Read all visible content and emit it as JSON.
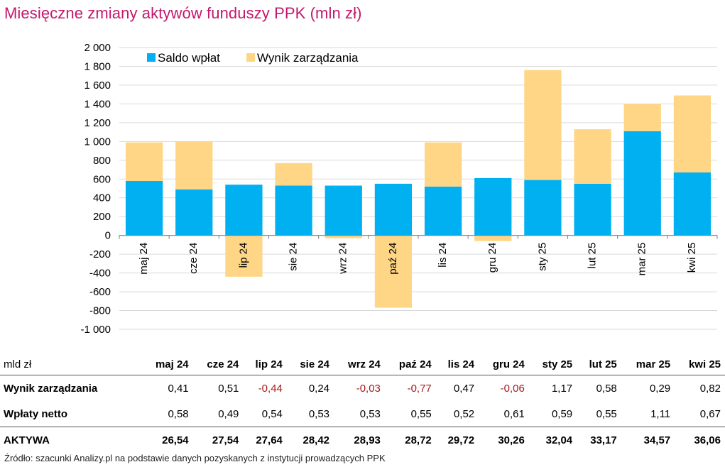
{
  "title": "Miesięczne zmiany aktywów funduszy PPK (mln zł)",
  "source": "Źródło: szacunki Analizy.pl na podstawie danych pozyskanych z instytucji prowadzących PPK",
  "colors": {
    "title": "#c4186c",
    "saldo": "#00b0f0",
    "wynik": "#ffd685",
    "negative_text": "#a8191c",
    "grid": "#d9d9d9"
  },
  "chart_data": {
    "type": "bar",
    "stacked": true,
    "categories": [
      "maj 24",
      "cze 24",
      "lip 24",
      "sie 24",
      "wrz 24",
      "paź 24",
      "lis 24",
      "gru 24",
      "sty 25",
      "lut 25",
      "mar 25",
      "kwi 25"
    ],
    "series": [
      {
        "name": "Saldo wpłat",
        "color": "#00b0f0",
        "values": [
          580,
          490,
          540,
          530,
          530,
          550,
          520,
          610,
          590,
          550,
          1110,
          670
        ]
      },
      {
        "name": "Wynik zarządzania",
        "color": "#ffd685",
        "values": [
          410,
          510,
          -440,
          240,
          -30,
          -770,
          470,
          -60,
          1170,
          580,
          290,
          820
        ]
      }
    ],
    "yticks": [
      "2 000",
      "1 800",
      "1 600",
      "1 400",
      "1 200",
      "1 000",
      "800",
      "600",
      "400",
      "200",
      "0",
      "-200",
      "-400",
      "-600",
      "-800",
      "-1 000"
    ],
    "ylim": [
      -1000,
      2000
    ],
    "grid": true,
    "legend_position": "top-left",
    "xlabel": "",
    "ylabel": ""
  },
  "table": {
    "corner": "mld zł",
    "columns": [
      "maj 24",
      "cze 24",
      "lip 24",
      "sie 24",
      "wrz 24",
      "paź 24",
      "lis 24",
      "gru 24",
      "sty 25",
      "lut 25",
      "mar 25",
      "kwi 25"
    ],
    "rows": [
      {
        "label": "Wynik zarządzania",
        "values": [
          "0,41",
          "0,51",
          "-0,44",
          "0,24",
          "-0,03",
          "-0,77",
          "0,47",
          "-0,06",
          "1,17",
          "0,58",
          "0,29",
          "0,82"
        ]
      },
      {
        "label": "Wpłaty netto",
        "values": [
          "0,58",
          "0,49",
          "0,54",
          "0,53",
          "0,53",
          "0,55",
          "0,52",
          "0,61",
          "0,59",
          "0,55",
          "1,11",
          "0,67"
        ]
      },
      {
        "label": "AKTYWA",
        "values": [
          "26,54",
          "27,54",
          "27,64",
          "28,42",
          "28,93",
          "28,72",
          "29,72",
          "30,26",
          "32,04",
          "33,17",
          "34,57",
          "36,06"
        ]
      }
    ]
  }
}
